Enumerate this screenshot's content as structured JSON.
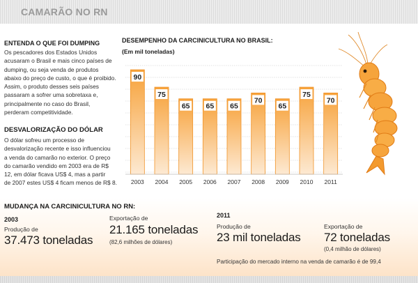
{
  "header": {
    "title": "CAMARÃO NO RN"
  },
  "left": {
    "dumping_title": "ENTENDA O QUE FOI DUMPING",
    "dumping_lines": [
      "Os pescadores dos Estados Unidos",
      "acusaram o Brasil e mais cinco países de",
      "dumping, ou seja venda de produtos",
      "abaixo do preço de custo, o que é proibido.",
      "Assim, o produto desses seis países",
      "passaram a sofrer uma sobretaxa  e,",
      "principalmente no caso do Brasil,",
      "perderam competitividade."
    ],
    "dolar_title": "DESVALORIZAÇÃO  DO  DÓLAR",
    "dolar_lines": [
      "O dólar sofreu um processo de",
      "desvalorização recente e  isso influenciou",
      "a venda do camarão no exterior. O preço",
      "do camarão vendido   em 2003 era de R$",
      "12, em dólar ficava US$ 4, mas a partir",
      "de 2007 estes US$ 4 ficam menos de R$ 8."
    ]
  },
  "chart_data": {
    "type": "bar",
    "title": "DESEMPENHO DA CARCINICULTURA NO BRASIL:",
    "subtitle": "(Em mil toneladas)",
    "categories": [
      "2003",
      "2004",
      "2005",
      "2006",
      "2007",
      "2008",
      "2009",
      "2010",
      "2011"
    ],
    "values": [
      90,
      75,
      65,
      65,
      65,
      70,
      65,
      75,
      70
    ],
    "ylim": [
      0,
      100
    ],
    "grid": true,
    "colors": {
      "bar_top": "#f7a23a",
      "bar_bottom": "#fde9d2",
      "label_box": "#ffffff"
    }
  },
  "bottom": {
    "title": "MUDANÇA NA CARCINICULTURA NO RN:",
    "y2003": {
      "year": "2003",
      "prod_label": "Produção de",
      "prod_value": "37.473 toneladas",
      "exp_label": "Exportação de",
      "exp_value": "21.165 toneladas",
      "exp_note": "(82,6 milhões de dólares)"
    },
    "y2011": {
      "year": "2011",
      "prod_label": "Produção de",
      "prod_value": "23 mil toneladas",
      "exp_label": "Exportação de",
      "exp_value": "72 toneladas",
      "exp_note": "(0,4 milhão de dólares)"
    },
    "participation": "Participação do mercado interno na venda de camarão é de 99,4"
  }
}
